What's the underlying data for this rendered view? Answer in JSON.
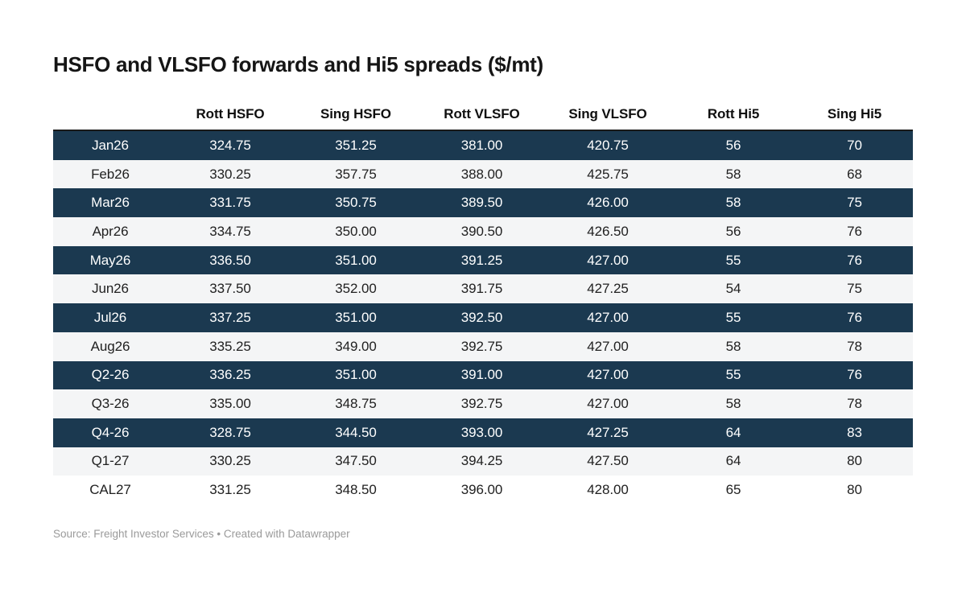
{
  "title": "HSFO and VLSFO forwards and Hi5 spreads ($/mt)",
  "chart_data": {
    "type": "table",
    "title": "HSFO and VLSFO forwards and Hi5 spreads ($/mt)",
    "columns": [
      "",
      "Rott HSFO",
      "Sing HSFO",
      "Rott VLSFO",
      "Sing VLSFO",
      "Rott Hi5",
      "Sing Hi5"
    ],
    "rows": [
      {
        "label": "Jan26",
        "values": [
          "324.75",
          "351.25",
          "381.00",
          "420.75",
          "56",
          "70"
        ],
        "variant": "dark"
      },
      {
        "label": "Feb26",
        "values": [
          "330.25",
          "357.75",
          "388.00",
          "425.75",
          "58",
          "68"
        ],
        "variant": "gray"
      },
      {
        "label": "Mar26",
        "values": [
          "331.75",
          "350.75",
          "389.50",
          "426.00",
          "58",
          "75"
        ],
        "variant": "dark"
      },
      {
        "label": "Apr26",
        "values": [
          "334.75",
          "350.00",
          "390.50",
          "426.50",
          "56",
          "76"
        ],
        "variant": "gray"
      },
      {
        "label": "May26",
        "values": [
          "336.50",
          "351.00",
          "391.25",
          "427.00",
          "55",
          "76"
        ],
        "variant": "dark"
      },
      {
        "label": "Jun26",
        "values": [
          "337.50",
          "352.00",
          "391.75",
          "427.25",
          "54",
          "75"
        ],
        "variant": "gray"
      },
      {
        "label": "Jul26",
        "values": [
          "337.25",
          "351.00",
          "392.50",
          "427.00",
          "55",
          "76"
        ],
        "variant": "dark"
      },
      {
        "label": "Aug26",
        "values": [
          "335.25",
          "349.00",
          "392.75",
          "427.00",
          "58",
          "78"
        ],
        "variant": "gray"
      },
      {
        "label": "Q2-26",
        "values": [
          "336.25",
          "351.00",
          "391.00",
          "427.00",
          "55",
          "76"
        ],
        "variant": "dark"
      },
      {
        "label": "Q3-26",
        "values": [
          "335.00",
          "348.75",
          "392.75",
          "427.00",
          "58",
          "78"
        ],
        "variant": "gray"
      },
      {
        "label": "Q4-26",
        "values": [
          "328.75",
          "344.50",
          "393.00",
          "427.25",
          "64",
          "83"
        ],
        "variant": "dark"
      },
      {
        "label": "Q1-27",
        "values": [
          "330.25",
          "347.50",
          "394.25",
          "427.50",
          "64",
          "80"
        ],
        "variant": "gray"
      },
      {
        "label": "CAL27",
        "values": [
          "331.25",
          "348.50",
          "396.00",
          "428.00",
          "65",
          "80"
        ],
        "variant": "white"
      }
    ]
  },
  "footer": {
    "source_label": "Source: ",
    "source_name": "Freight Investor Services",
    "separator": " • ",
    "credit": "Created with Datawrapper"
  },
  "colors": {
    "dark_row_bg": "#1b3950",
    "dark_row_text": "#ffffff",
    "gray_row_bg": "#f4f5f6",
    "top_border": "#1a1a1a",
    "footer_text": "#9a9a9a"
  }
}
